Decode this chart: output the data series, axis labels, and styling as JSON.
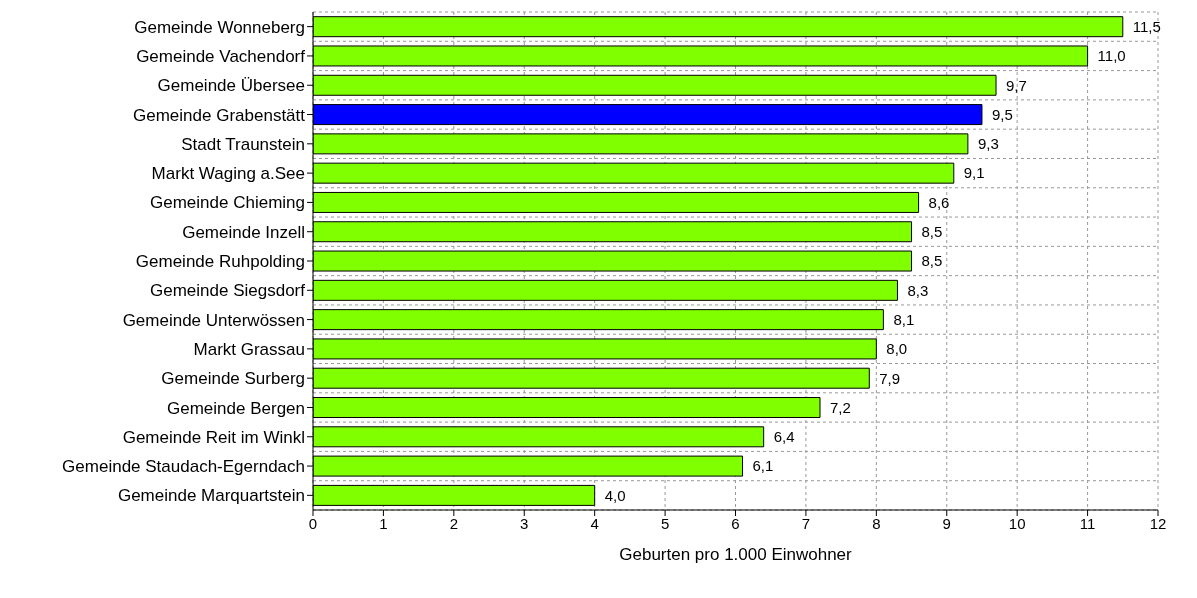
{
  "chart_data": {
    "type": "bar",
    "orientation": "horizontal",
    "xlabel": "Geburten pro 1.000 Einwohner",
    "categories": [
      "Gemeinde Wonneberg",
      "Gemeinde Vachendorf",
      "Gemeinde Übersee",
      "Gemeinde Grabenstätt",
      "Stadt Traunstein",
      "Markt Waging a.See",
      "Gemeinde Chieming",
      "Gemeinde Inzell",
      "Gemeinde Ruhpolding",
      "Gemeinde Siegsdorf",
      "Gemeinde Unterwössen",
      "Markt Grassau",
      "Gemeinde Surberg",
      "Gemeinde Bergen",
      "Gemeinde Reit im Winkl",
      "Gemeinde Staudach-Egerndach",
      "Gemeinde Marquartstein"
    ],
    "values": [
      11.5,
      11.0,
      9.7,
      9.5,
      9.3,
      9.1,
      8.6,
      8.5,
      8.5,
      8.3,
      8.1,
      8.0,
      7.9,
      7.2,
      6.4,
      6.1,
      4.0
    ],
    "value_labels": [
      "11,5",
      "11,0",
      "9,7",
      "9,5",
      "9,3",
      "9,1",
      "8,6",
      "8,5",
      "8,5",
      "8,3",
      "8,1",
      "8,0",
      "7,9",
      "7,2",
      "6,4",
      "6,1",
      "4,0"
    ],
    "colors": [
      "#80ff00",
      "#80ff00",
      "#80ff00",
      "#0000ff",
      "#80ff00",
      "#80ff00",
      "#80ff00",
      "#80ff00",
      "#80ff00",
      "#80ff00",
      "#80ff00",
      "#80ff00",
      "#80ff00",
      "#80ff00",
      "#80ff00",
      "#80ff00",
      "#80ff00"
    ],
    "xlim": [
      0,
      12
    ],
    "xticks": [
      0,
      1,
      2,
      3,
      4,
      5,
      6,
      7,
      8,
      9,
      10,
      11,
      12
    ],
    "grid": true
  }
}
